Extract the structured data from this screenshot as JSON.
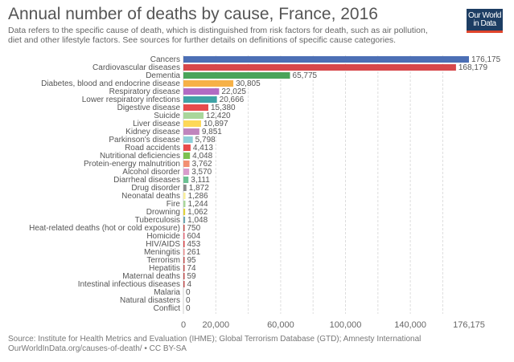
{
  "header": {
    "title": "Annual number of deaths by cause, France, 2016",
    "subtitle": "Data refers to the specific cause of death, which is distinguished from risk factors for death, such as air pollution, diet and other lifestyle factors. See sources for further details on definitions of specific cause categories.",
    "logo_line1": "Our World",
    "logo_line2": "in Data",
    "logo_colors": {
      "background": "#1d3d63",
      "accent": "#e0452c"
    }
  },
  "chart_data": {
    "type": "bar",
    "orientation": "horizontal",
    "title": "Annual number of deaths by cause, France, 2016",
    "categories": [
      "Cancers",
      "Cardiovascular diseases",
      "Dementia",
      "Diabetes, blood and endocrine disease",
      "Respiratory disease",
      "Lower respiratory infections",
      "Digestive disease",
      "Suicide",
      "Liver disease",
      "Kidney disease",
      "Parkinson's disease",
      "Road accidents",
      "Nutritional deficiencies",
      "Protein-energy malnutrition",
      "Alcohol disorder",
      "Diarrheal diseases",
      "Drug disorder",
      "Neonatal deaths",
      "Fire",
      "Drowning",
      "Tuberculosis",
      "Heat-related deaths (hot or cold exposure)",
      "Homicide",
      "HIV/AIDS",
      "Meningitis",
      "Terrorism",
      "Hepatitis",
      "Maternal deaths",
      "Intestinal infectious diseases",
      "Malaria",
      "Natural disasters",
      "Conflict"
    ],
    "values": [
      176175,
      168179,
      65775,
      30805,
      22025,
      20666,
      15380,
      12420,
      10897,
      9851,
      5798,
      4413,
      4048,
      3762,
      3570,
      3111,
      1872,
      1286,
      1244,
      1062,
      1048,
      750,
      604,
      453,
      261,
      95,
      74,
      59,
      4,
      0,
      0,
      0
    ],
    "value_labels": [
      "176,175",
      "168,179",
      "65,775",
      "30,805",
      "22,025",
      "20,666",
      "15,380",
      "12,420",
      "10,897",
      "9,851",
      "5,798",
      "4,413",
      "4,048",
      "3,762",
      "3,570",
      "3,111",
      "1,872",
      "1,286",
      "1,244",
      "1,062",
      "1,048",
      "750",
      "604",
      "453",
      "261",
      "95",
      "74",
      "59",
      "4",
      "0",
      "0",
      "0"
    ],
    "colors": [
      "#4c6fb5",
      "#d7474a",
      "#4aa45a",
      "#f6b147",
      "#b26bc3",
      "#3ea3a6",
      "#e84b4b",
      "#a9d69b",
      "#fdd858",
      "#c085bd",
      "#8ecfd8",
      "#e84b4b",
      "#7dc150",
      "#f28f72",
      "#d99ccc",
      "#6cc192",
      "#8c8c8c",
      "#f9ee9a",
      "#a9d69b",
      "#e0d23a",
      "#6fa6b0",
      "#c0504d",
      "#e56b7a",
      "#d7474a",
      "#e88d8d",
      "#c05050",
      "#c05050",
      "#c05050",
      "#c05050",
      "#c05050",
      "#c05050",
      "#c05050"
    ],
    "xlim": [
      0,
      176175
    ],
    "x_ticks": [
      0,
      20000,
      60000,
      100000,
      140000,
      176175
    ],
    "x_tick_labels": [
      "0",
      "20,000",
      "60,000",
      "100,000",
      "140,000",
      "176,175"
    ],
    "grid_values": [
      20000,
      40000,
      60000,
      80000,
      100000,
      120000,
      140000,
      160000
    ],
    "grid": true
  },
  "footer": {
    "source": "Source: Institute for Health Metrics and Evaluation (IHME); Global Terrorism Database (GTD); Amnesty International",
    "url": "OurWorldInData.org/causes-of-death/ • CC BY-SA"
  }
}
